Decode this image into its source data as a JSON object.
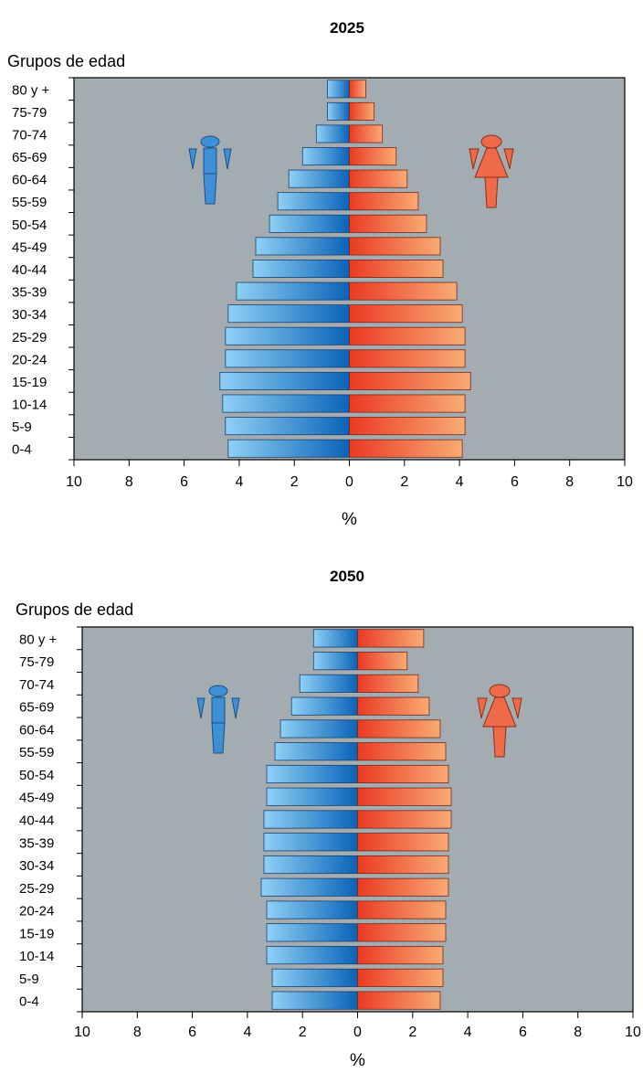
{
  "colors": {
    "plot_background": "#a3acb0",
    "male_dark": "#0a63b8",
    "male_light": "#8fd0f5",
    "female_dark": "#ea3a24",
    "female_light": "#f8ab74",
    "male_icon": "#3e8fd6",
    "female_icon": "#ef6a48"
  },
  "icons": {
    "male": "male-figure-icon",
    "female": "female-figure-icon"
  },
  "chart_data": [
    {
      "type": "bar",
      "title": "2025",
      "ylabel": "Grupos de edad",
      "xlabel": "%",
      "xlim": [
        -10,
        10
      ],
      "x_ticks": [
        "10",
        "8",
        "6",
        "4",
        "2",
        "0",
        "2",
        "4",
        "6",
        "8",
        "10"
      ],
      "categories": [
        "80 y +",
        "75-79",
        "70-74",
        "65-69",
        "60-64",
        "55-59",
        "50-54",
        "45-49",
        "40-44",
        "35-39",
        "30-34",
        "25-29",
        "20-24",
        "15-19",
        "10-14",
        "5-9",
        "0-4"
      ],
      "series": [
        {
          "values": [
            0.8,
            0.8,
            1.2,
            1.7,
            2.2,
            2.6,
            2.9,
            3.4,
            3.5,
            4.1,
            4.4,
            4.5,
            4.5,
            4.7,
            4.6,
            4.5,
            4.4
          ]
        },
        {
          "values": [
            0.6,
            0.9,
            1.2,
            1.7,
            2.1,
            2.5,
            2.8,
            3.3,
            3.4,
            3.9,
            4.1,
            4.2,
            4.2,
            4.4,
            4.2,
            4.2,
            4.1
          ]
        }
      ],
      "grid": false
    },
    {
      "type": "bar",
      "title": "2050",
      "ylabel": "Grupos de edad",
      "xlabel": "%",
      "xlim": [
        -10,
        10
      ],
      "x_ticks": [
        "10",
        "8",
        "6",
        "4",
        "2",
        "0",
        "2",
        "4",
        "6",
        "8",
        "10"
      ],
      "categories": [
        "80 y +",
        "75-79",
        "70-74",
        "65-69",
        "60-64",
        "55-59",
        "50-54",
        "45-49",
        "40-44",
        "35-39",
        "30-34",
        "25-29",
        "20-24",
        "15-19",
        "10-14",
        "5-9",
        "0-4"
      ],
      "series": [
        {
          "values": [
            1.6,
            1.6,
            2.1,
            2.4,
            2.8,
            3.0,
            3.3,
            3.3,
            3.4,
            3.4,
            3.4,
            3.5,
            3.3,
            3.3,
            3.3,
            3.1,
            3.1
          ]
        },
        {
          "values": [
            2.4,
            1.8,
            2.2,
            2.6,
            3.0,
            3.2,
            3.3,
            3.4,
            3.4,
            3.3,
            3.3,
            3.3,
            3.2,
            3.2,
            3.1,
            3.1,
            3.0
          ]
        }
      ],
      "grid": false
    }
  ]
}
